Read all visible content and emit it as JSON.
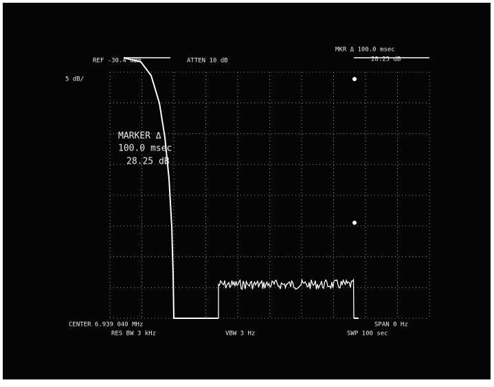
{
  "header": {
    "ref": "REF -30.4 dBm",
    "atten": "ATTEN 10 dB",
    "marker_delta": "MKR Δ 100.0 msec",
    "marker_level": "28.25 dB",
    "scale": "5 dB/"
  },
  "marker_box": {
    "title": "MARKER Δ",
    "time": "100.0 msec",
    "level": "28.25 dB"
  },
  "footer": {
    "center": "CENTER 6.939 040 MHz",
    "res_bw": "RES BW 3 kHz",
    "vbw": "VBW 3 Hz",
    "span": "SPAN 0 Hz",
    "sweep": "SWP 100 sec"
  }
}
